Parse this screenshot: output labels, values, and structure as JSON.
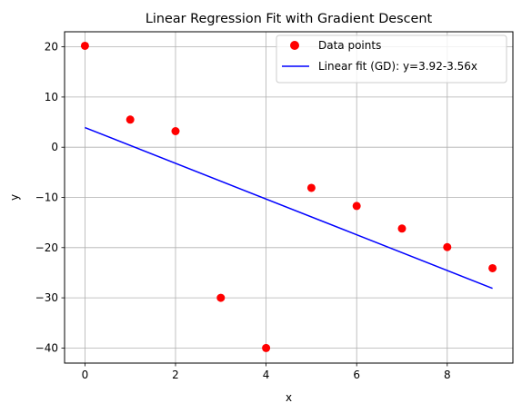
{
  "chart_data": {
    "type": "scatter",
    "title": "Linear Regression Fit with Gradient Descent",
    "xlabel": "x",
    "ylabel": "y",
    "xlim": [
      -0.45,
      9.45
    ],
    "ylim": [
      -43.0,
      23.0
    ],
    "xticks": [
      0,
      2,
      4,
      6,
      8
    ],
    "yticks": [
      -40,
      -30,
      -20,
      -10,
      0,
      10,
      20
    ],
    "grid": true,
    "legend_position": "top-right",
    "series": [
      {
        "name": "Data points",
        "kind": "scatter",
        "color": "#ff0000",
        "x": [
          0,
          1,
          2,
          3,
          4,
          5,
          6,
          7,
          8,
          9
        ],
        "y": [
          20.2,
          5.5,
          3.2,
          -30.0,
          -40.0,
          -8.1,
          -11.7,
          -16.2,
          -19.9,
          -24.1
        ]
      },
      {
        "name": "Linear fit (GD): y=3.92-3.56x",
        "kind": "line",
        "color": "#0000ff",
        "x": [
          0,
          9
        ],
        "y": [
          3.92,
          -28.12
        ]
      }
    ]
  }
}
